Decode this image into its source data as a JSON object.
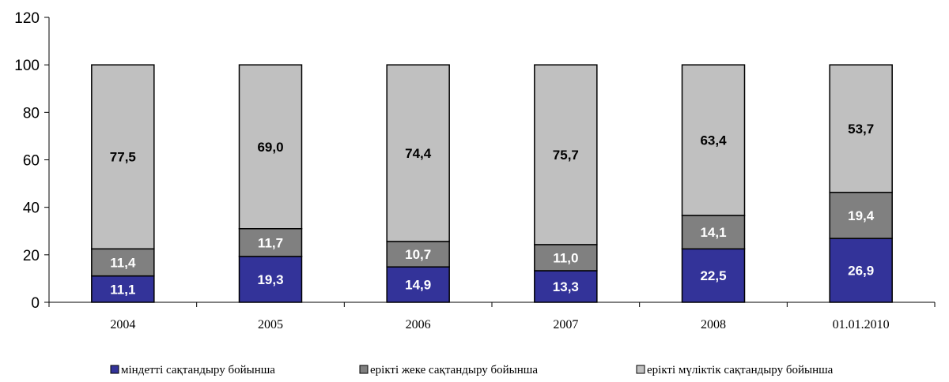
{
  "chart_data": {
    "type": "bar",
    "stacked": true,
    "categories": [
      "2004",
      "2005",
      "2006",
      "2007",
      "2008",
      "01.01.2010"
    ],
    "series": [
      {
        "name": "міндетті сақтандыру бойынша",
        "color": "#333399",
        "values": [
          11.1,
          19.3,
          14.9,
          13.3,
          22.5,
          26.9
        ],
        "labels": [
          "11,1",
          "19,3",
          "14,9",
          "13,3",
          "22,5",
          "26,9"
        ],
        "label_color": "#ffffff"
      },
      {
        "name": "ерікті жеке сақтандыру бойынша",
        "color": "#808080",
        "values": [
          11.4,
          11.7,
          10.7,
          11.0,
          14.1,
          19.4
        ],
        "labels": [
          "11,4",
          "11,7",
          "10,7",
          "11,0",
          "14,1",
          "19,4"
        ],
        "label_color": "#ffffff"
      },
      {
        "name": "ерікті мүліктік сақтандыру бойынша",
        "color": "#c0c0c0",
        "values": [
          77.5,
          69.0,
          74.4,
          75.7,
          63.4,
          53.7
        ],
        "labels": [
          "77,5",
          "69,0",
          "74,4",
          "75,7",
          "63,4",
          "53,7"
        ],
        "label_color": "#000000"
      }
    ],
    "ylim": [
      0,
      120
    ],
    "yticks": [
      0,
      20,
      40,
      60,
      80,
      100,
      120
    ],
    "grid": false,
    "legend_position": "bottom",
    "title": "",
    "xlabel": "",
    "ylabel": ""
  }
}
